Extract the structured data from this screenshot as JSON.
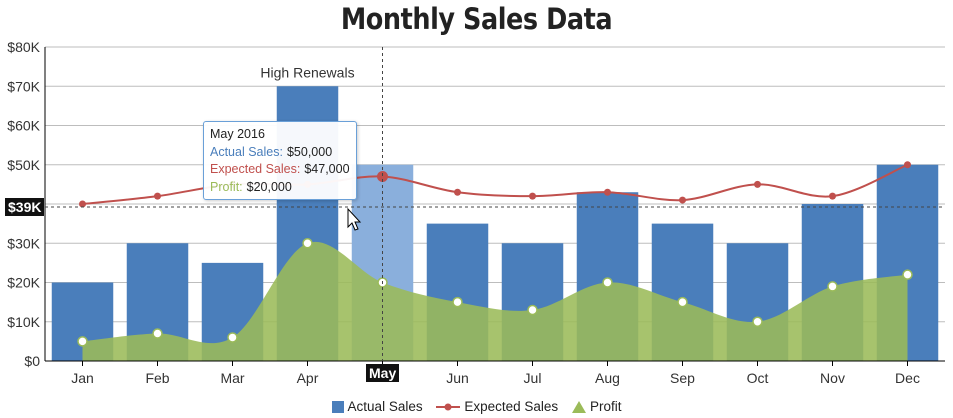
{
  "chart_data": {
    "type": "bar",
    "title": "Monthly Sales Data",
    "categories": [
      "Jan",
      "Feb",
      "Mar",
      "Apr",
      "May",
      "Jun",
      "Jul",
      "Aug",
      "Sep",
      "Oct",
      "Nov",
      "Dec"
    ],
    "series": [
      {
        "name": "Actual Sales",
        "type": "bar",
        "color": "#4a7ebb",
        "values": [
          20000,
          30000,
          25000,
          70000,
          50000,
          35000,
          30000,
          43000,
          35000,
          30000,
          40000,
          50000
        ]
      },
      {
        "name": "Expected Sales",
        "type": "line",
        "color": "#c0504d",
        "values": [
          40000,
          42000,
          45000,
          45000,
          47000,
          43000,
          42000,
          43000,
          41000,
          45000,
          42000,
          50000
        ]
      },
      {
        "name": "Profit",
        "type": "area",
        "color": "#9bbb59",
        "values": [
          5000,
          7000,
          6000,
          30000,
          20000,
          15000,
          13000,
          20000,
          15000,
          10000,
          19000,
          22000
        ]
      }
    ],
    "yticks": [
      "$0",
      "$10K",
      "$20K",
      "$30K",
      "$40K",
      "$50K",
      "$60K",
      "$70K",
      "$80K"
    ],
    "ylim": [
      0,
      80000
    ],
    "annotation": {
      "category": "Apr",
      "text": "High Renewals"
    },
    "highlighted_category": "May",
    "grid": true,
    "legend_position": "bottom"
  },
  "tooltip": {
    "header": "May 2016",
    "rows": [
      {
        "label": "Actual Sales:",
        "value": "$50,000",
        "color": "#4a7ebb"
      },
      {
        "label": "Expected Sales:",
        "value": "$47,000",
        "color": "#c0504d"
      },
      {
        "label": "Profit:",
        "value": "$20,000",
        "color": "#9bbb59"
      }
    ]
  },
  "crosshair": {
    "y_label": "$39K",
    "x_label": "May"
  }
}
